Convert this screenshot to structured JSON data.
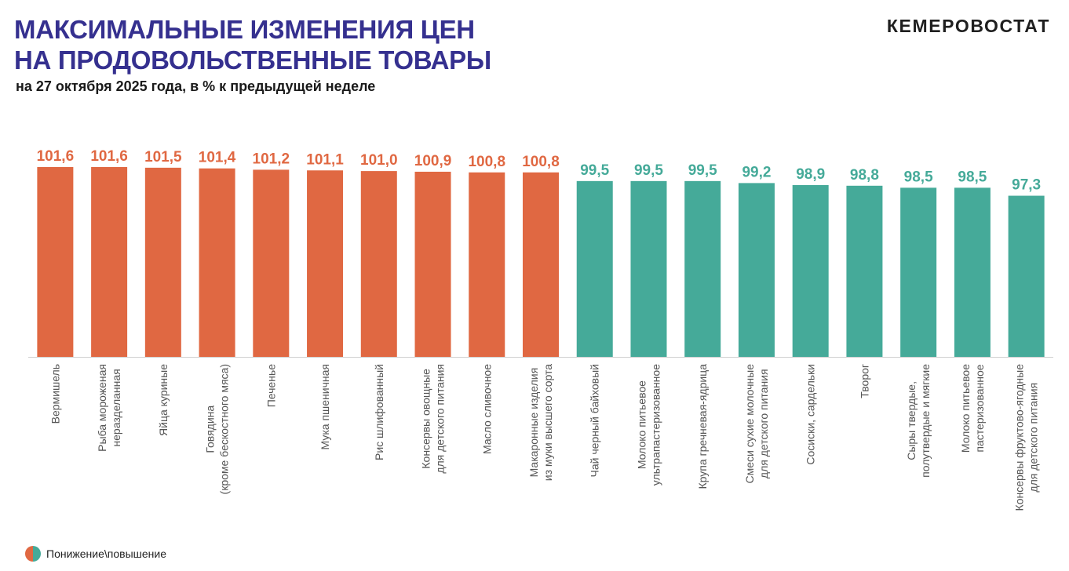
{
  "header": {
    "title_line1": "МАКСИМАЛЬНЫЕ ИЗМЕНЕНИЯ ЦЕН",
    "title_line2": "НА ПРОДОВОЛЬСТВЕННЫЕ ТОВАРЫ",
    "subtitle": "на 27 октября 2025 года, в % к предыдущей неделе",
    "brand": "КЕМЕРОВОСТАТ"
  },
  "legend": {
    "label": "Понижение\\повышение"
  },
  "colors": {
    "increase": "#e06842",
    "decrease": "#45aa99",
    "title": "#35308f"
  },
  "chart_data": {
    "type": "bar",
    "title": "",
    "xlabel": "",
    "ylabel": "",
    "ylim": [
      0,
      102
    ],
    "categories": [
      [
        "Вермишель"
      ],
      [
        "Рыба мороженая",
        "неразделанная"
      ],
      [
        "Яйца куриные"
      ],
      [
        "Говядина",
        "(кроме бескостного мяса)"
      ],
      [
        "Печенье"
      ],
      [
        "Мука пшеничная"
      ],
      [
        "Рис шлифованный"
      ],
      [
        "Консервы овощные",
        "для детского питания"
      ],
      [
        "Масло сливочное"
      ],
      [
        "Макаронные изделия",
        "из муки высшего сорта"
      ],
      [
        "Чай черный байховый"
      ],
      [
        "Молоко питьевое",
        "ультрапастеризованное"
      ],
      [
        "Крупа гречневая-ядрица"
      ],
      [
        "Смеси сухие молочные",
        "для детского питания"
      ],
      [
        "Сосиски, сардельки"
      ],
      [
        "Творог"
      ],
      [
        "Сыры твердые,",
        "полутвердые и мягкие"
      ],
      [
        "Молоко питьевое",
        "пастеризованное"
      ],
      [
        "Консервы фруктово-ягодные",
        "для детского питания"
      ]
    ],
    "labels": [
      "101,6",
      "101,6",
      "101,5",
      "101,4",
      "101,2",
      "101,1",
      "101,0",
      "100,9",
      "100,8",
      "100,8",
      "99,5",
      "99,5",
      "99,5",
      "99,2",
      "98,9",
      "98,8",
      "98,5",
      "98,5",
      "97,3"
    ],
    "values": [
      101.6,
      101.6,
      101.5,
      101.4,
      101.2,
      101.1,
      101.0,
      100.9,
      100.8,
      100.8,
      99.5,
      99.5,
      99.5,
      99.2,
      98.9,
      98.8,
      98.5,
      98.5,
      97.3
    ],
    "direction": [
      "up",
      "up",
      "up",
      "up",
      "up",
      "up",
      "up",
      "up",
      "up",
      "up",
      "down",
      "down",
      "down",
      "down",
      "down",
      "down",
      "down",
      "down",
      "down"
    ]
  }
}
